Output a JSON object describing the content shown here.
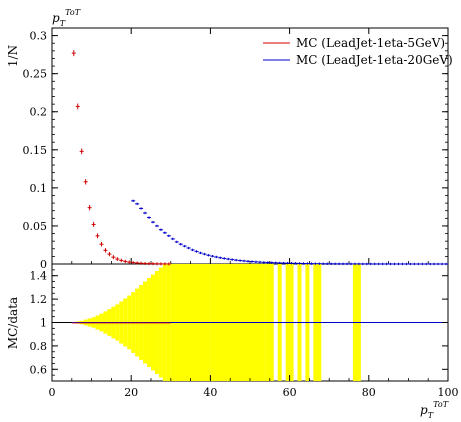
{
  "chart_data": [
    {
      "type": "scatter",
      "title": "",
      "xlabel": "p_T^{ToT}",
      "ylabel": "1/N",
      "ylabel_top": "p_T^{ToT}",
      "xlim": [
        0,
        100
      ],
      "ylim": [
        0,
        0.31
      ],
      "yticks": [
        "0",
        "0.05",
        "0.1",
        "0.15",
        "0.2",
        "0.25",
        "0.3"
      ],
      "legend_position": "top-right",
      "series": [
        {
          "name": "MC (LeadJet-1eta-5GeV)",
          "color": "#d00000",
          "x": [
            5.5,
            6.5,
            7.5,
            8.5,
            9.5,
            10.5,
            11.5,
            12.5,
            13.5,
            14.5,
            15.5,
            16.5,
            17.5,
            18.5,
            19.5,
            20.5,
            21.5,
            22.5,
            23.5,
            24.5,
            25.5,
            26.5,
            27.5,
            28.5,
            29.5
          ],
          "y": [
            0.277,
            0.207,
            0.148,
            0.108,
            0.074,
            0.052,
            0.037,
            0.026,
            0.018,
            0.013,
            0.009,
            0.0065,
            0.0047,
            0.0034,
            0.0025,
            0.0018,
            0.0013,
            0.001,
            0.0007,
            0.0005,
            0.0004,
            0.0003,
            0.0002,
            0.00015,
            0.0001
          ]
        },
        {
          "name": "MC (LeadJet-1eta-20GeV)",
          "color": "#0000cc",
          "x": [
            20.5,
            21.5,
            22.5,
            23.5,
            24.5,
            25.5,
            26.5,
            27.5,
            28.5,
            29.5,
            30.5,
            31.5,
            32.5,
            33.5,
            34.5,
            35.5,
            36.5,
            37.5,
            38.5,
            39.5,
            40.5,
            41.5,
            42.5,
            43.5,
            44.5,
            45.5,
            46.5,
            47.5,
            48.5,
            49.5,
            50.5,
            51.5,
            52.5,
            53.5,
            54.5,
            55.5,
            56.5,
            57.5,
            58.5,
            59.5,
            60.5,
            61.5,
            62.5,
            63.5,
            64.5,
            65.5,
            66.5,
            67.5,
            68.5,
            69.5,
            70.5,
            71.5,
            72.5,
            73.5,
            74.5,
            75.5,
            76.5,
            77.5,
            78.5,
            79.5,
            80.5,
            81.5,
            82.5,
            83.5,
            84.5,
            85.5,
            86.5,
            87.5,
            88.5,
            89.5,
            90.5,
            91.5,
            92.5,
            93.5,
            94.5,
            95.5,
            96.5,
            97.5,
            98.5,
            99.5
          ],
          "y": [
            0.083,
            0.079,
            0.073,
            0.067,
            0.061,
            0.055,
            0.05,
            0.045,
            0.041,
            0.037,
            0.033,
            0.029,
            0.026,
            0.0235,
            0.021,
            0.0185,
            0.0165,
            0.0145,
            0.013,
            0.0115,
            0.0103,
            0.0092,
            0.0082,
            0.0073,
            0.0065,
            0.0058,
            0.0051,
            0.0045,
            0.004,
            0.0036,
            0.0032,
            0.0028,
            0.0025,
            0.0022,
            0.002,
            0.0018,
            0.0016,
            0.0014,
            0.0012,
            0.0011,
            0.001,
            0.0009,
            0.0008,
            0.0007,
            0.0006,
            0.0005,
            0.00045,
            0.0004,
            0.00035,
            0.0003,
            0.00027,
            0.00024,
            0.00021,
            0.00019,
            0.00017,
            0.00015,
            0.00013,
            0.00012,
            0.0001,
            9e-05,
            8e-05,
            7e-05,
            6e-05,
            5e-05,
            5e-05,
            4e-05,
            4e-05,
            3e-05,
            3e-05,
            3e-05,
            2e-05,
            2e-05,
            2e-05,
            2e-05,
            1e-05,
            1e-05,
            1e-05,
            1e-05,
            1e-05,
            1e-05
          ]
        }
      ]
    },
    {
      "type": "bar",
      "title": "",
      "xlabel": "p_T^{ToT}",
      "ylabel": "MC/data",
      "xlim": [
        0,
        100
      ],
      "ylim": [
        0.5,
        1.5
      ],
      "yticks": [
        "0.6",
        "0.8",
        "1",
        "1.2",
        "1.4"
      ],
      "xticks": [
        "0",
        "20",
        "40",
        "60",
        "80",
        "100"
      ],
      "reference_line": 1,
      "band_color": "#ffff00",
      "band": {
        "x_low": [
          5,
          6,
          7,
          8,
          9,
          10,
          11,
          12,
          13,
          14,
          15,
          16,
          17,
          18,
          19,
          20,
          21,
          22,
          23,
          24,
          25,
          26,
          27,
          28,
          29,
          30,
          40,
          54,
          57,
          59,
          62,
          64,
          66,
          76
        ],
        "x_high": [
          6,
          7,
          8,
          9,
          10,
          11,
          12,
          13,
          14,
          15,
          16,
          17,
          18,
          19,
          20,
          21,
          22,
          23,
          24,
          25,
          26,
          27,
          28,
          29,
          30,
          40,
          54,
          56,
          58,
          61,
          63,
          65,
          68,
          78
        ],
        "low": [
          0.995,
          0.99,
          0.985,
          0.975,
          0.965,
          0.955,
          0.94,
          0.925,
          0.905,
          0.885,
          0.865,
          0.845,
          0.82,
          0.795,
          0.77,
          0.74,
          0.71,
          0.68,
          0.65,
          0.62,
          0.59,
          0.56,
          0.53,
          0.5,
          0.5,
          0.5,
          0.5,
          0.5,
          0.5,
          0.5,
          0.5,
          0.5,
          0.5,
          0.5
        ],
        "high": [
          1.005,
          1.01,
          1.015,
          1.025,
          1.035,
          1.045,
          1.06,
          1.075,
          1.095,
          1.115,
          1.135,
          1.155,
          1.18,
          1.205,
          1.23,
          1.26,
          1.29,
          1.32,
          1.35,
          1.38,
          1.41,
          1.44,
          1.47,
          1.5,
          1.5,
          1.5,
          1.5,
          1.5,
          1.5,
          1.5,
          1.5,
          1.5,
          1.5,
          1.5
        ]
      }
    }
  ],
  "labels": {
    "top_ylabel_sup": "ToT",
    "top_ylabel_base": "p",
    "top_ylabel_sub": "T",
    "y1": "1/N",
    "y2": "MC/data",
    "x_base": "p",
    "x_sub": "T",
    "x_sup": "ToT"
  }
}
